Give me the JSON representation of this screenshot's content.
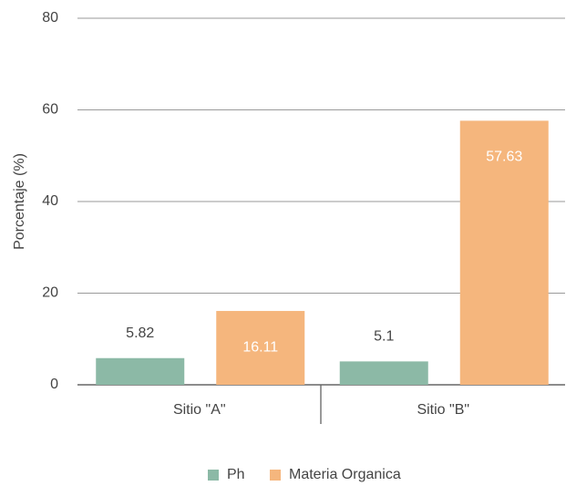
{
  "chart_data": {
    "type": "bar",
    "y_label": "Porcentaje (%)",
    "categories": [
      "Sitio \"A\"",
      "Sitio \"B\""
    ],
    "series": [
      {
        "name": "Ph",
        "color": "#8cb9a6",
        "values": [
          5.82,
          5.1
        ]
      },
      {
        "name": "Materia Organica",
        "color": "#f5b67d",
        "values": [
          16.11,
          57.63
        ]
      }
    ],
    "ylim": [
      0,
      80
    ],
    "yticks": [
      0,
      20,
      40,
      60,
      80
    ],
    "grid": true
  }
}
